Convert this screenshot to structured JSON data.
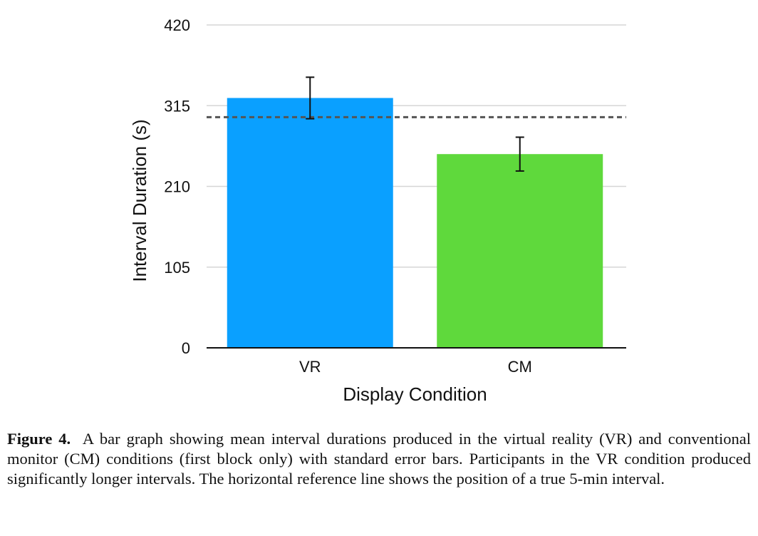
{
  "chart_data": {
    "type": "bar",
    "categories": [
      "VR",
      "CM"
    ],
    "values": [
      325,
      252
    ],
    "error": [
      27,
      22
    ],
    "colors": [
      "#0aa0ff",
      "#5fd93c"
    ],
    "xlabel": "Display Condition",
    "ylabel": "Interval Duration (s)",
    "ylim": [
      0,
      420
    ],
    "yticks": [
      "0",
      "105",
      "210",
      "315",
      "420"
    ],
    "reference_line": 300,
    "grid": true
  },
  "caption": {
    "label": "Figure 4.",
    "text": "A bar graph showing mean interval durations produced in the virtual reality (VR) and conventional monitor (CM) conditions (first block only) with standard error bars. Participants in the VR condition produced significantly longer intervals. The horizontal reference line shows the position of a true 5-min interval."
  }
}
